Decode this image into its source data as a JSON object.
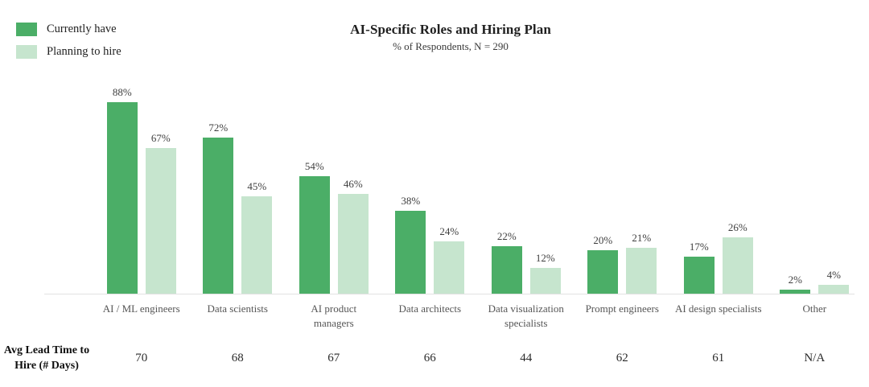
{
  "chart_data": {
    "type": "bar",
    "title": "AI-Specific Roles and Hiring Plan",
    "subtitle": "% of Respondents, N = 290",
    "categories": [
      "AI / ML engineers",
      "Data scientists",
      "AI product\nmanagers",
      "Data architects",
      "Data visualization\nspecialists",
      "Prompt engineers",
      "AI design specialists",
      "Other"
    ],
    "series": [
      {
        "name": "Currently have",
        "color": "#4BAE67",
        "values": [
          88,
          72,
          54,
          38,
          22,
          20,
          17,
          2
        ]
      },
      {
        "name": "Planning to hire",
        "color": "#C6E5CE",
        "values": [
          67,
          45,
          46,
          24,
          12,
          21,
          26,
          4
        ]
      }
    ],
    "value_suffix": "%",
    "ylim": [
      0,
      100
    ],
    "grid": false,
    "legend_position": "top-left",
    "axis_line_color": "#E2E2E2",
    "lead_time_row": {
      "label": "Avg Lead Time to Hire (# Days)",
      "values": [
        "70",
        "68",
        "67",
        "66",
        "44",
        "62",
        "61",
        "N/A"
      ]
    }
  }
}
